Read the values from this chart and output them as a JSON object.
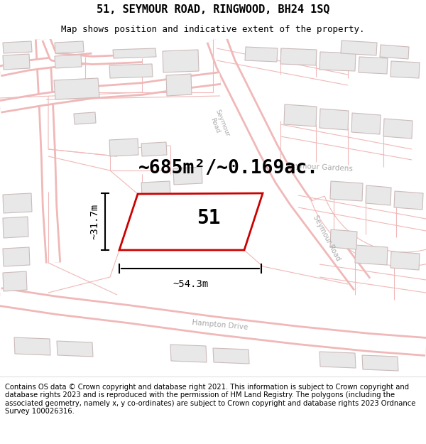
{
  "title": "51, SEYMOUR ROAD, RINGWOOD, BH24 1SQ",
  "subtitle": "Map shows position and indicative extent of the property.",
  "footer": "Contains OS data © Crown copyright and database right 2021. This information is subject to Crown copyright and database rights 2023 and is reproduced with the permission of HM Land Registry. The polygons (including the associated geometry, namely x, y co-ordinates) are subject to Crown copyright and database rights 2023 Ordnance Survey 100026316.",
  "area_text": "~685m²/~0.169ac.",
  "width_text": "~54.3m",
  "height_text": "~31.7m",
  "label_51": "51",
  "map_bg": "#ffffff",
  "road_outline_color": "#f0b8b8",
  "road_fill_color": "#ffffff",
  "building_fill": "#e8e8e8",
  "building_edge": "#ccbbbb",
  "plot_edge_color": "#cc0000",
  "plot_fill_color": "#ffffff",
  "road_label_color": "#aaaaaa",
  "title_fontsize": 11,
  "subtitle_fontsize": 9,
  "footer_fontsize": 7.2,
  "area_fontsize": 19,
  "label_fontsize": 20,
  "dim_fontsize": 10
}
